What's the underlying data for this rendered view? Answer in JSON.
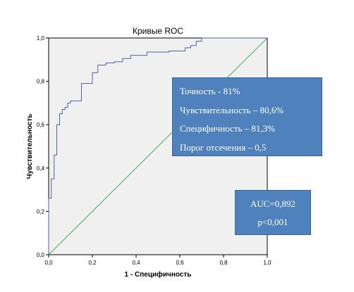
{
  "chart_data": {
    "type": "line",
    "title": "Кривые ROC",
    "xlabel": "1 - Специфичность",
    "ylabel": "Чувствительность",
    "xlim": [
      0,
      1
    ],
    "ylim": [
      0,
      1
    ],
    "xticks": [
      "0,0",
      "0,2",
      "0,4",
      "0,6",
      "0,8",
      "1,0"
    ],
    "yticks": [
      "0,0",
      "0,2",
      "0,4",
      "0,6",
      "0,8",
      "1,0"
    ],
    "grid": false,
    "series": [
      {
        "color": "#4f5fb0",
        "x": [
          0,
          0,
          0.012,
          0.012,
          0.025,
          0.025,
          0.037,
          0.037,
          0.05,
          0.05,
          0.062,
          0.062,
          0.075,
          0.075,
          0.087,
          0.087,
          0.1,
          0.1,
          0.15,
          0.15,
          0.2,
          0.2,
          0.225,
          0.225,
          0.262,
          0.262,
          0.3,
          0.3,
          0.338,
          0.338,
          0.375,
          0.375,
          0.45,
          0.45,
          0.55,
          0.55,
          0.625,
          0.625,
          0.65,
          0.65,
          0.675,
          0.675,
          0.7,
          0.7,
          1
        ],
        "y": [
          0,
          0.26,
          0.26,
          0.35,
          0.35,
          0.46,
          0.46,
          0.6,
          0.6,
          0.65,
          0.65,
          0.67,
          0.67,
          0.68,
          0.68,
          0.7,
          0.7,
          0.71,
          0.71,
          0.79,
          0.79,
          0.84,
          0.84,
          0.875,
          0.875,
          0.885,
          0.885,
          0.89,
          0.89,
          0.905,
          0.905,
          0.92,
          0.92,
          0.935,
          0.935,
          0.94,
          0.94,
          0.955,
          0.955,
          0.965,
          0.965,
          0.985,
          0.985,
          1,
          1
        ]
      },
      {
        "color": "#3cb44b",
        "x": [
          0,
          1
        ],
        "y": [
          0,
          1
        ]
      }
    ],
    "annotations": {
      "stats": [
        "Точность - 81%",
        "Чувствительность – 80,6%",
        "Специфичность – 81,3%",
        "Порог отсечения – 0,5"
      ],
      "auc": [
        "AUC=0,892",
        "p<0,001"
      ]
    },
    "colors": {
      "plot_background": "#f0f0f0",
      "annotation_box": "#4f81bd"
    }
  }
}
